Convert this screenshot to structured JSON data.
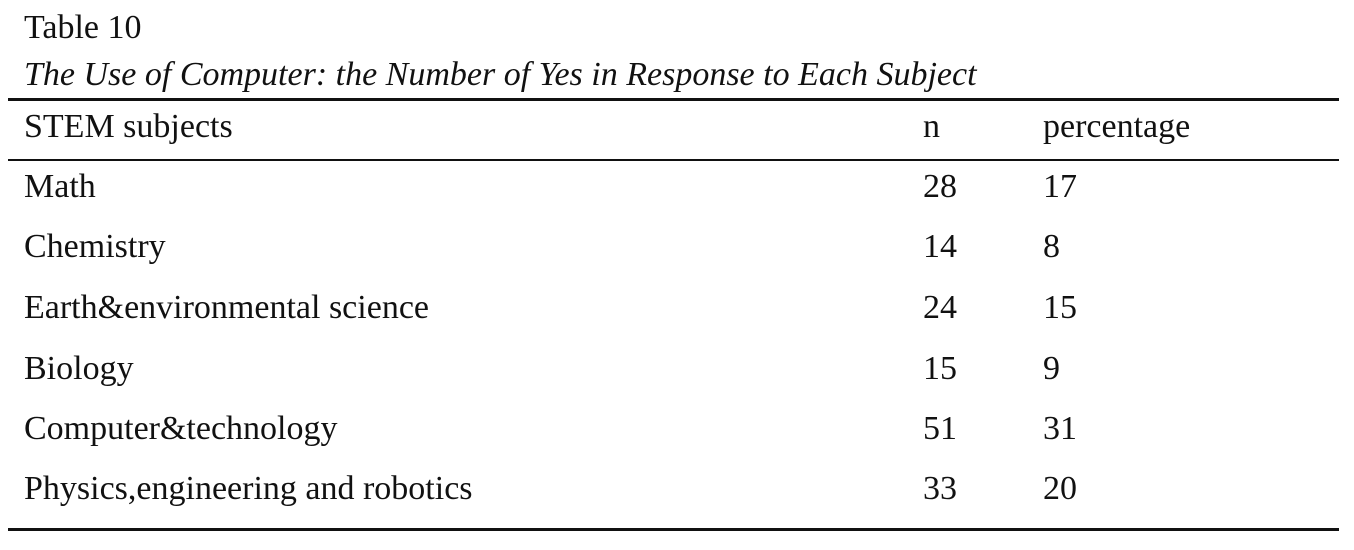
{
  "table": {
    "number": "Table 10",
    "title": "The Use of Computer: the Number of Yes in Response to Each Subject",
    "headers": {
      "subject": "STEM subjects",
      "n": "n",
      "percentage": "percentage"
    },
    "rows": [
      {
        "subject": "Math",
        "n": "28",
        "percentage": "17"
      },
      {
        "subject": "Chemistry",
        "n": "14",
        "percentage": "8"
      },
      {
        "subject": "Earth&environmental science",
        "n": "24",
        "percentage": "15"
      },
      {
        "subject": "Biology",
        "n": "15",
        "percentage": "9"
      },
      {
        "subject": "Computer&technology",
        "n": "51",
        "percentage": "31"
      },
      {
        "subject": "Physics,engineering and robotics",
        "n": "33",
        "percentage": "20"
      }
    ]
  }
}
